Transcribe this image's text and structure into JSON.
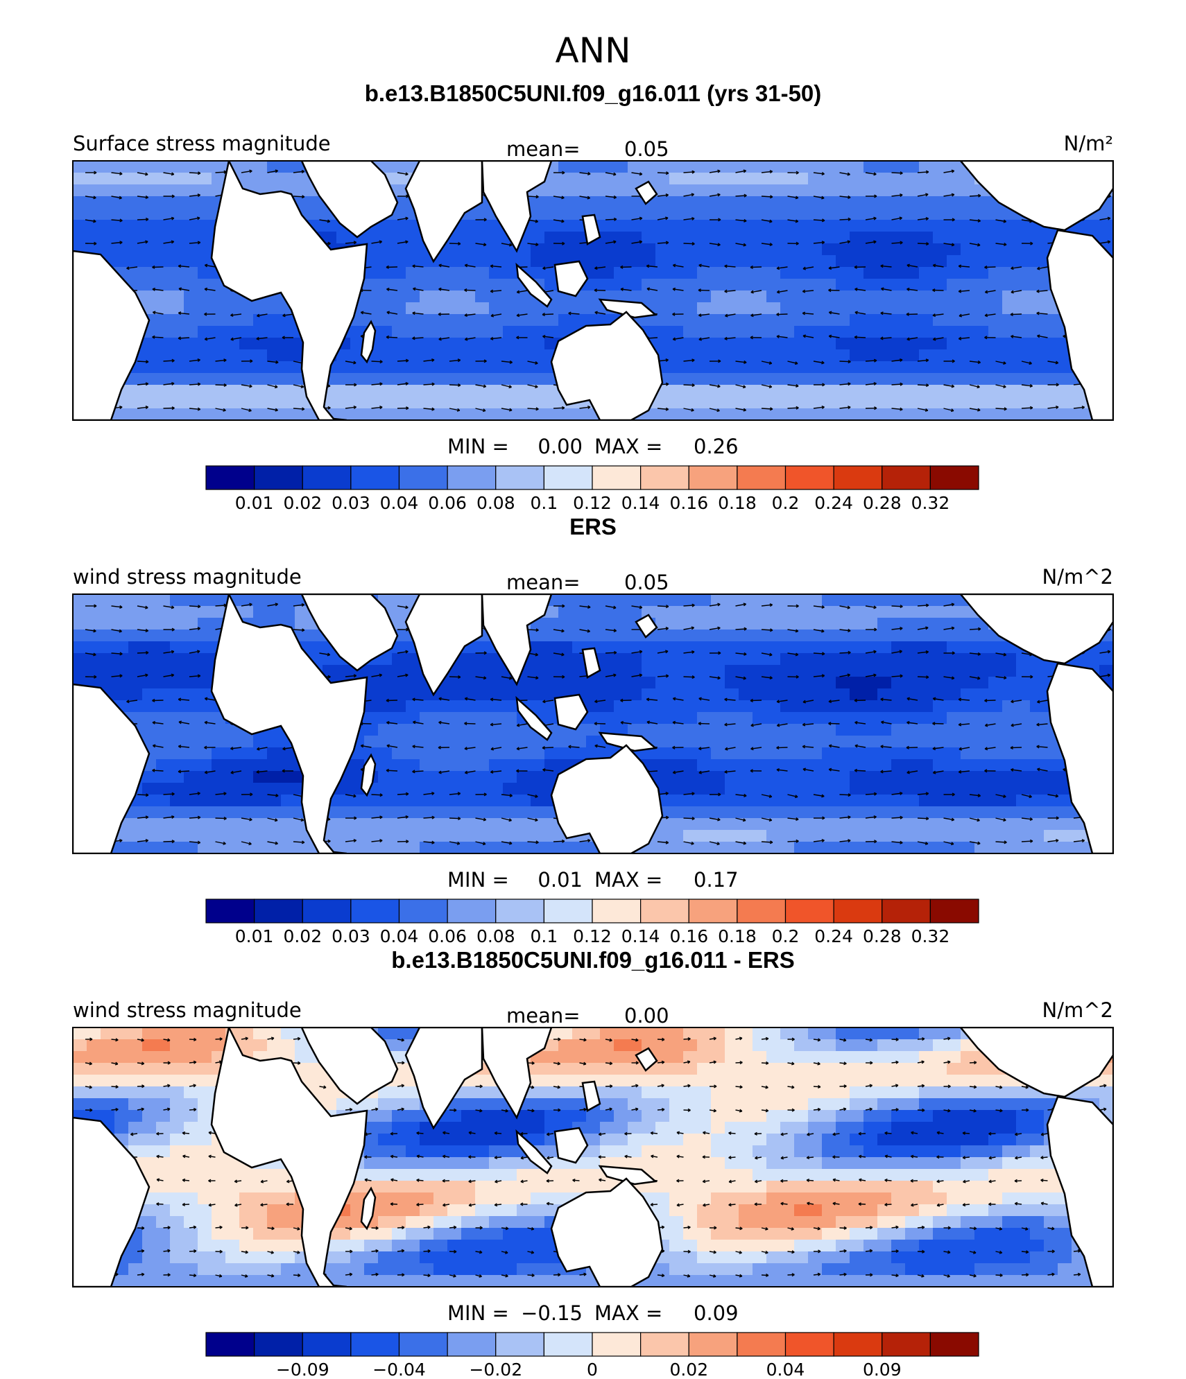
{
  "title": "ANN",
  "colors": {
    "cool": [
      "#00008c",
      "#0020a8",
      "#0a3ccf",
      "#1a55e6",
      "#3b70e8",
      "#7a9ef0",
      "#a9c2f5",
      "#d4e4fa"
    ],
    "warm": [
      "#fde8d8",
      "#fbc6ab",
      "#f7a27d",
      "#f47b50",
      "#f0552a",
      "#da3a10",
      "#b52208",
      "#8a0a00"
    ]
  },
  "chart_data": [
    {
      "type": "heatmap",
      "panel_title": "b.e13.B1850C5UNI.f09_g16.011 (yrs 31-50)",
      "left_label": "Surface stress magnitude",
      "units": "N/m²",
      "mean_label": "mean=",
      "mean_value": "0.05",
      "min_label": "MIN =",
      "min_value": "0.00",
      "max_label": "MAX =",
      "max_value": "0.26",
      "colorbar_ticks": [
        "0.01",
        "0.02",
        "0.03",
        "0.04",
        "0.06",
        "0.08",
        "0.1",
        "0.12",
        "0.14",
        "0.16",
        "0.18",
        "0.2",
        "0.24",
        "0.28",
        "0.32"
      ],
      "field": "model"
    },
    {
      "type": "heatmap",
      "panel_title": "ERS",
      "left_label": "wind stress magnitude",
      "units": "N/m^2",
      "mean_label": "mean=",
      "mean_value": "0.05",
      "min_label": "MIN =",
      "min_value": "0.01",
      "max_label": "MAX =",
      "max_value": "0.17",
      "colorbar_ticks": [
        "0.01",
        "0.02",
        "0.03",
        "0.04",
        "0.06",
        "0.08",
        "0.1",
        "0.12",
        "0.14",
        "0.16",
        "0.18",
        "0.2",
        "0.24",
        "0.28",
        "0.32"
      ],
      "field": "obs"
    },
    {
      "type": "heatmap",
      "panel_title": "b.e13.B1850C5UNI.f09_g16.011 - ERS",
      "left_label": "wind stress magnitude",
      "units": "N/m^2",
      "mean_label": "mean=",
      "mean_value": "0.00",
      "min_label": "MIN =",
      "min_value": "−0.15",
      "max_label": "MAX =",
      "max_value": "0.09",
      "colorbar_ticks": [
        "−0.09",
        "−0.04",
        "−0.02",
        "0",
        "0.02",
        "0.04",
        "0.09"
      ],
      "field": "diff"
    }
  ]
}
